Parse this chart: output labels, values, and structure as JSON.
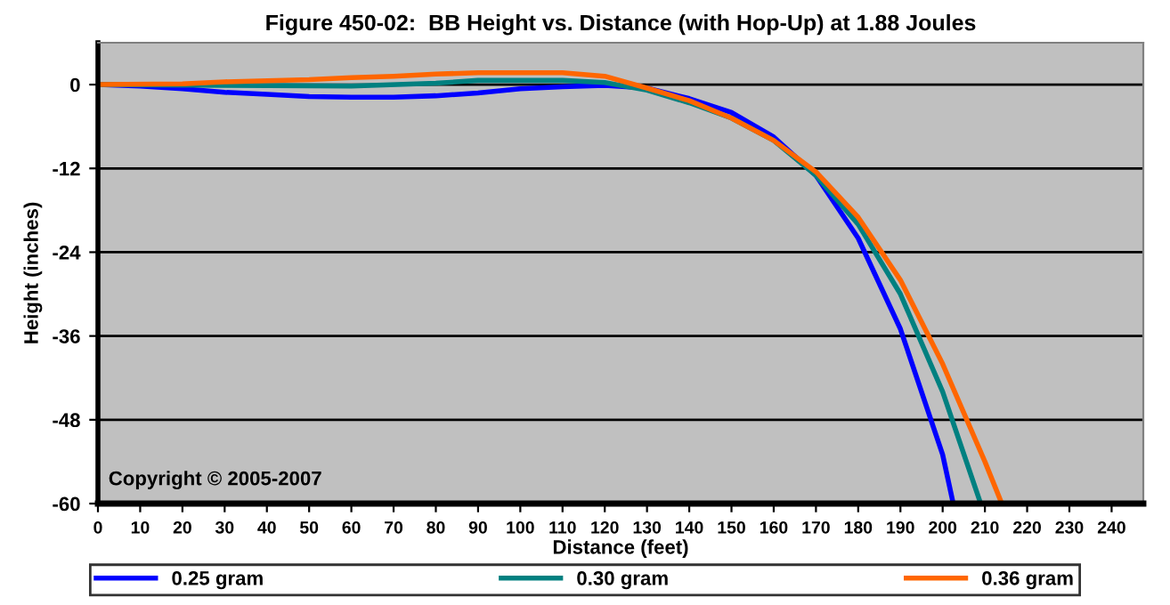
{
  "chart_data": {
    "type": "line",
    "title": "Figure 450-02:  BB Height vs. Distance (with Hop-Up) at 1.88 Joules",
    "xlabel": "Distance (feet)",
    "ylabel": "Height (inches)",
    "annotations": [
      "Copyright © 2005-2007"
    ],
    "xlim": [
      0,
      247.5
    ],
    "xticks": [
      0,
      10,
      20,
      30,
      40,
      50,
      60,
      70,
      80,
      90,
      100,
      110,
      120,
      130,
      140,
      150,
      160,
      170,
      180,
      190,
      200,
      210,
      220,
      230,
      240
    ],
    "ylim": [
      -60,
      6
    ],
    "yticks": [
      0,
      -12,
      -24,
      -36,
      -48,
      -60
    ],
    "grid": "y",
    "legend": "bottom",
    "marker": "none",
    "line_style": "solid",
    "series": [
      {
        "name": "0.25 gram",
        "color": "#0000ff",
        "x": [
          0,
          10,
          20,
          30,
          40,
          50,
          60,
          70,
          80,
          90,
          100,
          110,
          120,
          130,
          140,
          150,
          160,
          170,
          180,
          190,
          200,
          202.5
        ],
        "values": [
          0,
          -0.2,
          -0.6,
          -1.1,
          -1.4,
          -1.7,
          -1.8,
          -1.8,
          -1.6,
          -1.2,
          -0.6,
          -0.3,
          -0.1,
          -0.5,
          -2,
          -4,
          -7.5,
          -13,
          -22,
          -35,
          -53,
          -60
        ]
      },
      {
        "name": "0.30 gram",
        "color": "#008080",
        "x": [
          0,
          30,
          60,
          80,
          90,
          110,
          120,
          130,
          140,
          150,
          160,
          170,
          180,
          190,
          200,
          209
        ],
        "values": [
          0,
          -0.1,
          -0.2,
          0.2,
          0.6,
          0.6,
          0.3,
          -0.8,
          -2.6,
          -4.8,
          -8,
          -13,
          -20,
          -30,
          -44,
          -60
        ]
      },
      {
        "name": "0.36 gram",
        "color": "#ff6600",
        "x": [
          0,
          20,
          30,
          50,
          60,
          70,
          80,
          90,
          110,
          120,
          130,
          140,
          150,
          160,
          170,
          180,
          190,
          200,
          210,
          214
        ],
        "values": [
          0,
          0.1,
          0.4,
          0.7,
          1.0,
          1.2,
          1.5,
          1.7,
          1.7,
          1.2,
          -0.5,
          -2.3,
          -4.8,
          -8,
          -12.5,
          -19,
          -28,
          -40,
          -54,
          -60
        ]
      }
    ]
  }
}
